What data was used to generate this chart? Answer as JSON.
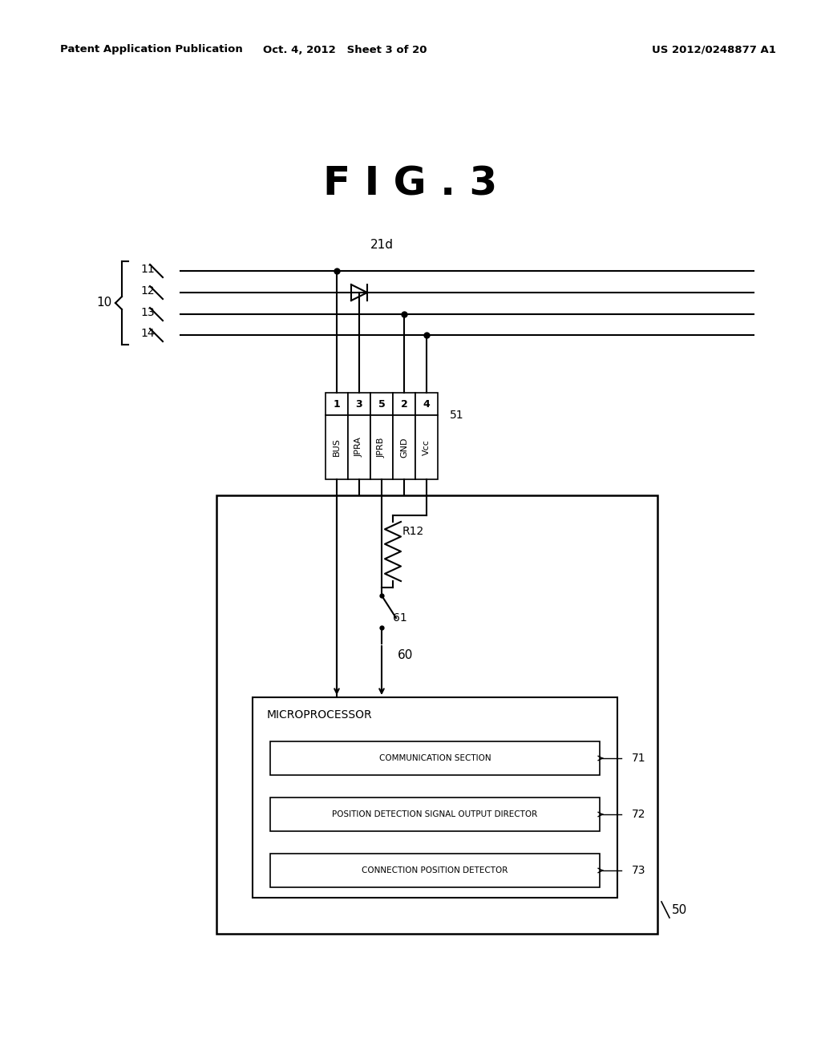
{
  "bg_color": "#ffffff",
  "header_left": "Patent Application Publication",
  "header_mid": "Oct. 4, 2012   Sheet 3 of 20",
  "header_right": "US 2012/0248877 A1",
  "fig_title": "F I G . 3",
  "bus_line_labels": [
    "11",
    "12",
    "13",
    "14"
  ],
  "brace_label": "10",
  "bus_label_21d": "21d",
  "connector_pins": [
    "1",
    "3",
    "5",
    "2",
    "4"
  ],
  "connector_pin_labels": [
    "BUS",
    "JPRA",
    "JPRB",
    "GND",
    "Vcc"
  ],
  "connector_label": "51",
  "outer_box_label": "50",
  "microprocessor_label": "MICROPROCESSOR",
  "sections": [
    {
      "label": "COMMUNICATION SECTION",
      "ref": "71"
    },
    {
      "label": "POSITION DETECTION SIGNAL OUTPUT DIRECTOR",
      "ref": "72"
    },
    {
      "label": "CONNECTION POSITION DETECTOR",
      "ref": "73"
    }
  ],
  "resistor_label": "R12",
  "switch_label": "61",
  "node_label": "60"
}
